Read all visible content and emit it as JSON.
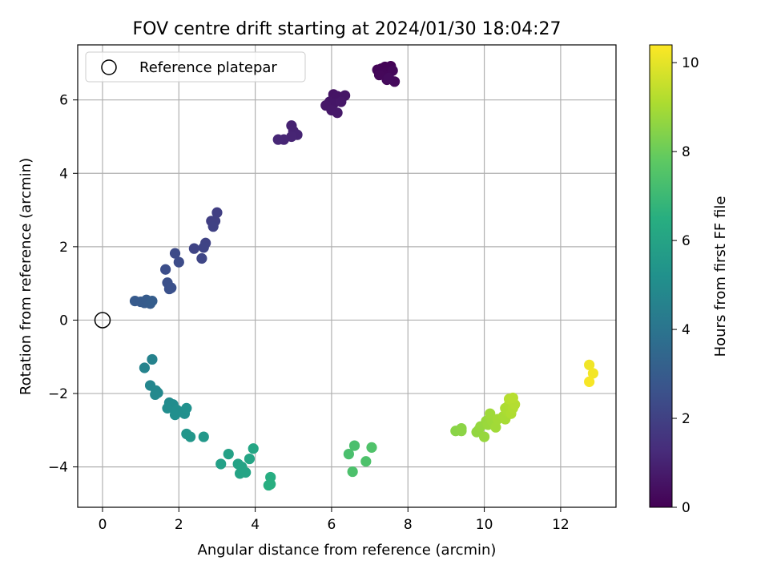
{
  "chart_data": {
    "type": "scatter",
    "title": "FOV centre drift starting at 2024/01/30 18:04:27",
    "xlabel": "Angular distance from reference (arcmin)",
    "ylabel": "Rotation from reference (arcmin)",
    "xlim": [
      -0.65,
      13.45
    ],
    "ylim": [
      -5.1,
      7.5
    ],
    "xticks": [
      0,
      2,
      4,
      6,
      8,
      10,
      12
    ],
    "yticks": [
      -4,
      -2,
      0,
      2,
      4,
      6
    ],
    "grid": true,
    "legend": {
      "position": "top-left",
      "entries": [
        "Reference platepar"
      ]
    },
    "reference_point": {
      "x": 0,
      "y": 0
    },
    "colorbar": {
      "label": "Hours from first FF file",
      "colormap": "viridis",
      "range": [
        0,
        10.4
      ],
      "ticks": [
        0,
        2,
        4,
        6,
        8,
        10
      ]
    },
    "points": [
      {
        "x": 7.3,
        "y": 6.85,
        "t": 0.05
      },
      {
        "x": 7.4,
        "y": 6.9,
        "t": 0.08
      },
      {
        "x": 7.55,
        "y": 6.92,
        "t": 0.1
      },
      {
        "x": 7.2,
        "y": 6.82,
        "t": 0.12
      },
      {
        "x": 7.45,
        "y": 6.75,
        "t": 0.15
      },
      {
        "x": 7.35,
        "y": 6.7,
        "t": 0.18
      },
      {
        "x": 7.6,
        "y": 6.8,
        "t": 0.2
      },
      {
        "x": 7.25,
        "y": 6.68,
        "t": 0.22
      },
      {
        "x": 7.45,
        "y": 6.55,
        "t": 0.25
      },
      {
        "x": 7.65,
        "y": 6.5,
        "t": 0.28
      },
      {
        "x": 7.5,
        "y": 6.6,
        "t": 0.3
      },
      {
        "x": 6.05,
        "y": 6.15,
        "t": 0.55
      },
      {
        "x": 6.15,
        "y": 6.1,
        "t": 0.57
      },
      {
        "x": 6.35,
        "y": 6.12,
        "t": 0.6
      },
      {
        "x": 5.95,
        "y": 5.95,
        "t": 0.62
      },
      {
        "x": 6.05,
        "y": 5.9,
        "t": 0.64
      },
      {
        "x": 5.85,
        "y": 5.85,
        "t": 0.66
      },
      {
        "x": 6.25,
        "y": 5.95,
        "t": 0.68
      },
      {
        "x": 6.0,
        "y": 5.72,
        "t": 0.7
      },
      {
        "x": 6.15,
        "y": 5.65,
        "t": 0.72
      },
      {
        "x": 4.95,
        "y": 5.3,
        "t": 1.0
      },
      {
        "x": 5.0,
        "y": 5.15,
        "t": 1.03
      },
      {
        "x": 5.1,
        "y": 5.05,
        "t": 1.06
      },
      {
        "x": 4.95,
        "y": 5.0,
        "t": 1.09
      },
      {
        "x": 4.75,
        "y": 4.92,
        "t": 1.12
      },
      {
        "x": 4.6,
        "y": 4.92,
        "t": 1.15
      },
      {
        "x": 3.0,
        "y": 2.93,
        "t": 1.95
      },
      {
        "x": 2.85,
        "y": 2.7,
        "t": 1.98
      },
      {
        "x": 2.95,
        "y": 2.7,
        "t": 2.0
      },
      {
        "x": 2.9,
        "y": 2.55,
        "t": 2.03
      },
      {
        "x": 2.7,
        "y": 2.1,
        "t": 2.1
      },
      {
        "x": 2.65,
        "y": 1.98,
        "t": 2.13
      },
      {
        "x": 2.4,
        "y": 1.95,
        "t": 2.16
      },
      {
        "x": 2.6,
        "y": 1.68,
        "t": 2.2
      },
      {
        "x": 1.9,
        "y": 1.82,
        "t": 2.4
      },
      {
        "x": 2.0,
        "y": 1.58,
        "t": 2.43
      },
      {
        "x": 1.65,
        "y": 1.38,
        "t": 2.5
      },
      {
        "x": 1.7,
        "y": 1.02,
        "t": 2.55
      },
      {
        "x": 1.75,
        "y": 0.85,
        "t": 2.58
      },
      {
        "x": 1.8,
        "y": 0.88,
        "t": 2.6
      },
      {
        "x": 0.85,
        "y": 0.52,
        "t": 2.95
      },
      {
        "x": 1.0,
        "y": 0.5,
        "t": 2.97
      },
      {
        "x": 1.1,
        "y": 0.47,
        "t": 3.0
      },
      {
        "x": 1.15,
        "y": 0.55,
        "t": 3.02
      },
      {
        "x": 1.25,
        "y": 0.45,
        "t": 3.05
      },
      {
        "x": 1.3,
        "y": 0.52,
        "t": 3.08
      },
      {
        "x": 1.3,
        "y": -1.07,
        "t": 4.6
      },
      {
        "x": 1.1,
        "y": -1.3,
        "t": 4.65
      },
      {
        "x": 1.25,
        "y": -1.78,
        "t": 4.8
      },
      {
        "x": 1.4,
        "y": -1.92,
        "t": 4.85
      },
      {
        "x": 1.45,
        "y": -1.98,
        "t": 4.88
      },
      {
        "x": 1.38,
        "y": -2.03,
        "t": 4.9
      },
      {
        "x": 1.75,
        "y": -2.25,
        "t": 5.0
      },
      {
        "x": 1.85,
        "y": -2.3,
        "t": 5.03
      },
      {
        "x": 1.7,
        "y": -2.4,
        "t": 5.06
      },
      {
        "x": 1.95,
        "y": -2.45,
        "t": 5.1
      },
      {
        "x": 2.05,
        "y": -2.5,
        "t": 5.13
      },
      {
        "x": 1.9,
        "y": -2.58,
        "t": 5.16
      },
      {
        "x": 2.15,
        "y": -2.55,
        "t": 5.2
      },
      {
        "x": 2.2,
        "y": -2.4,
        "t": 5.23
      },
      {
        "x": 2.2,
        "y": -3.1,
        "t": 5.45
      },
      {
        "x": 2.3,
        "y": -3.18,
        "t": 5.48
      },
      {
        "x": 2.65,
        "y": -3.18,
        "t": 5.55
      },
      {
        "x": 3.1,
        "y": -3.92,
        "t": 5.9
      },
      {
        "x": 3.3,
        "y": -3.65,
        "t": 5.95
      },
      {
        "x": 3.55,
        "y": -3.92,
        "t": 6.0
      },
      {
        "x": 3.65,
        "y": -4.0,
        "t": 6.03
      },
      {
        "x": 3.6,
        "y": -4.18,
        "t": 6.06
      },
      {
        "x": 3.75,
        "y": -4.15,
        "t": 6.09
      },
      {
        "x": 3.85,
        "y": -3.78,
        "t": 6.12
      },
      {
        "x": 3.95,
        "y": -3.5,
        "t": 6.15
      },
      {
        "x": 4.4,
        "y": -4.28,
        "t": 6.5
      },
      {
        "x": 4.35,
        "y": -4.5,
        "t": 6.53
      },
      {
        "x": 4.4,
        "y": -4.47,
        "t": 6.56
      },
      {
        "x": 6.45,
        "y": -3.65,
        "t": 7.35
      },
      {
        "x": 6.6,
        "y": -3.42,
        "t": 7.38
      },
      {
        "x": 6.55,
        "y": -4.13,
        "t": 7.42
      },
      {
        "x": 6.9,
        "y": -3.85,
        "t": 7.46
      },
      {
        "x": 7.05,
        "y": -3.47,
        "t": 7.5
      },
      {
        "x": 9.25,
        "y": -3.02,
        "t": 8.55
      },
      {
        "x": 9.4,
        "y": -2.95,
        "t": 8.58
      },
      {
        "x": 9.4,
        "y": -3.02,
        "t": 8.6
      },
      {
        "x": 9.8,
        "y": -3.05,
        "t": 8.7
      },
      {
        "x": 9.85,
        "y": -3.0,
        "t": 8.72
      },
      {
        "x": 9.9,
        "y": -2.9,
        "t": 8.75
      },
      {
        "x": 10.0,
        "y": -3.18,
        "t": 8.78
      },
      {
        "x": 10.05,
        "y": -2.75,
        "t": 8.8
      },
      {
        "x": 10.1,
        "y": -2.85,
        "t": 8.83
      },
      {
        "x": 10.15,
        "y": -2.65,
        "t": 8.86
      },
      {
        "x": 10.2,
        "y": -2.75,
        "t": 8.89
      },
      {
        "x": 10.15,
        "y": -2.55,
        "t": 8.92
      },
      {
        "x": 10.3,
        "y": -2.92,
        "t": 8.95
      },
      {
        "x": 10.35,
        "y": -2.7,
        "t": 8.98
      },
      {
        "x": 10.5,
        "y": -2.62,
        "t": 9.02
      },
      {
        "x": 10.55,
        "y": -2.7,
        "t": 9.05
      },
      {
        "x": 10.6,
        "y": -2.48,
        "t": 9.08
      },
      {
        "x": 10.55,
        "y": -2.4,
        "t": 9.11
      },
      {
        "x": 10.65,
        "y": -2.3,
        "t": 9.14
      },
      {
        "x": 10.7,
        "y": -2.55,
        "t": 9.17
      },
      {
        "x": 10.75,
        "y": -2.4,
        "t": 9.2
      },
      {
        "x": 10.8,
        "y": -2.3,
        "t": 9.25
      },
      {
        "x": 10.65,
        "y": -2.15,
        "t": 9.28
      },
      {
        "x": 10.75,
        "y": -2.12,
        "t": 9.31
      },
      {
        "x": 12.75,
        "y": -1.22,
        "t": 10.2
      },
      {
        "x": 12.85,
        "y": -1.45,
        "t": 10.25
      },
      {
        "x": 12.75,
        "y": -1.68,
        "t": 10.3
      }
    ]
  }
}
